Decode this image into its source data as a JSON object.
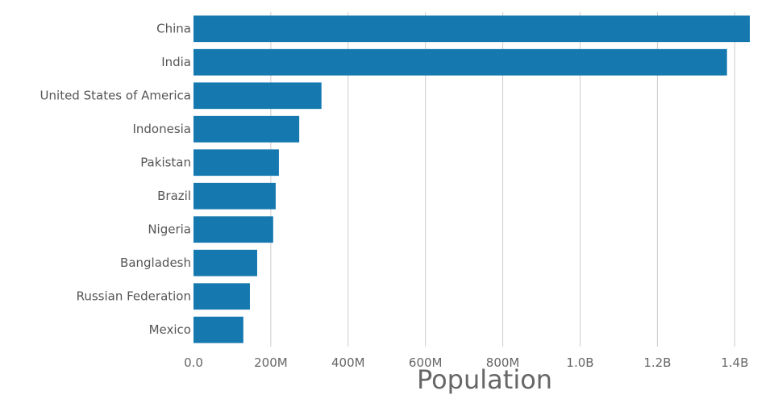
{
  "chart_data": {
    "type": "bar",
    "orientation": "horizontal",
    "categories": [
      "China",
      "India",
      "United States of America",
      "Indonesia",
      "Pakistan",
      "Brazil",
      "Nigeria",
      "Bangladesh",
      "Russian Federation",
      "Mexico"
    ],
    "values": [
      1439000000,
      1380000000,
      331000000,
      273500000,
      220900000,
      212600000,
      206100000,
      164700000,
      145900000,
      128900000
    ],
    "xlabel": "Population",
    "ylabel": "",
    "xlim": [
      0,
      1439000000
    ],
    "xticks": [
      0,
      200000000,
      400000000,
      600000000,
      800000000,
      1000000000,
      1200000000,
      1400000000
    ],
    "xtick_labels": [
      "0.0",
      "200M",
      "400M",
      "600M",
      "800M",
      "1.0B",
      "1.2B",
      "1.4B"
    ],
    "grid": true,
    "colors": {
      "bar": "#1579b0",
      "grid": "#cccccc"
    }
  }
}
